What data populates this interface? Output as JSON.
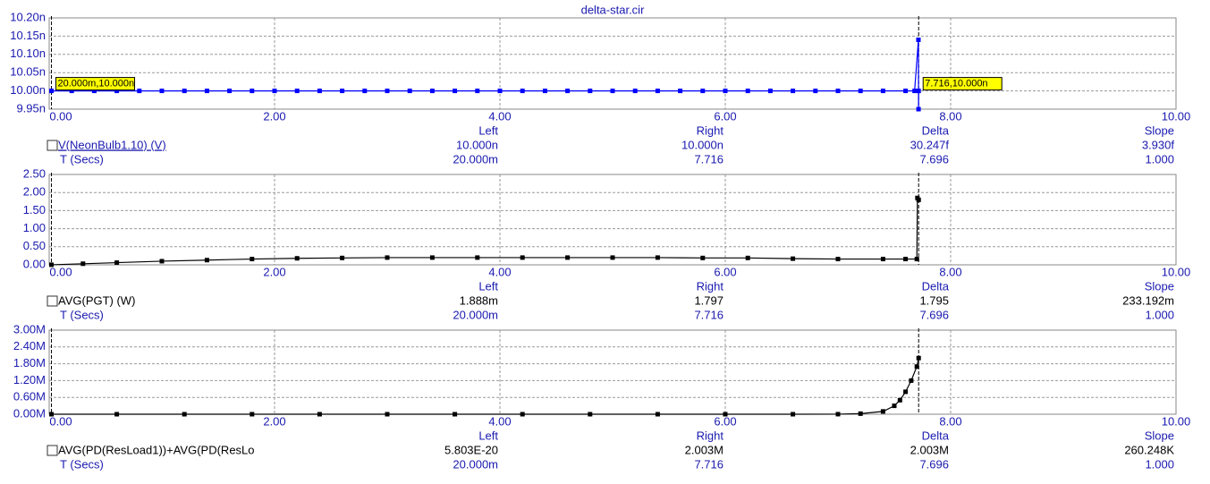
{
  "title": "delta-star.cir",
  "chart_data": [
    {
      "type": "line",
      "series": [
        {
          "name": "V(NeonBulb1.10) (V)",
          "color": "#0000ff",
          "x": [
            0.02,
            0.2,
            0.4,
            0.6,
            0.8,
            1.0,
            1.2,
            1.4,
            1.6,
            1.8,
            2.0,
            2.2,
            2.4,
            2.6,
            2.8,
            3.0,
            3.2,
            3.4,
            3.6,
            3.8,
            4.0,
            4.2,
            4.4,
            4.6,
            4.8,
            5.0,
            5.2,
            5.4,
            5.6,
            5.8,
            6.0,
            6.2,
            6.4,
            6.6,
            6.8,
            7.0,
            7.2,
            7.4,
            7.6,
            7.68,
            7.714,
            7.715,
            7.716
          ],
          "values": [
            1e-08,
            1e-08,
            1e-08,
            1e-08,
            1e-08,
            1e-08,
            1e-08,
            1e-08,
            1e-08,
            1e-08,
            1e-08,
            1e-08,
            1e-08,
            1e-08,
            1e-08,
            1e-08,
            1e-08,
            1e-08,
            1e-08,
            1e-08,
            1e-08,
            1e-08,
            1e-08,
            1e-08,
            1e-08,
            1e-08,
            1e-08,
            1e-08,
            1e-08,
            1e-08,
            1e-08,
            1e-08,
            1e-08,
            1e-08,
            1e-08,
            1e-08,
            1e-08,
            1e-08,
            1e-08,
            1e-08,
            1.014e-08,
            9.95e-09,
            1e-08
          ]
        }
      ],
      "xlim": [
        0,
        10
      ],
      "xticks": [
        {
          "value": 0,
          "label": "0.00"
        },
        {
          "value": 2,
          "label": "2.00"
        },
        {
          "value": 4,
          "label": "4.00"
        },
        {
          "value": 6,
          "label": "6.00"
        },
        {
          "value": 8,
          "label": "8.00"
        },
        {
          "value": 10,
          "label": "10.00"
        }
      ],
      "ylim": [
        9.95e-09,
        1.02e-08
      ],
      "yticks": [
        {
          "value": 9.95e-09,
          "label": "9.95n"
        },
        {
          "value": 1e-08,
          "label": "10.00n"
        },
        {
          "value": 1.005e-08,
          "label": "10.05n"
        },
        {
          "value": 1.01e-08,
          "label": "10.10n"
        },
        {
          "value": 1.015e-08,
          "label": "10.15n"
        },
        {
          "value": 1.02e-08,
          "label": "10.20n"
        }
      ],
      "grid": true,
      "cursors": [
        0.02,
        7.716
      ],
      "cursor_labels": [
        "20.000m,10.000n",
        "7.716,10.000n"
      ],
      "readout": {
        "headers": [
          "Left",
          "Right",
          "Delta",
          "Slope"
        ],
        "x_label": "T (Secs)",
        "trace_values": [
          "10.000n",
          "10.000n",
          "30.247f",
          "3.930f"
        ],
        "x_values": [
          "20.000m",
          "7.716",
          "7.696",
          "1.000"
        ]
      }
    },
    {
      "type": "line",
      "series": [
        {
          "name": "AVG(PGT) (W)",
          "color": "#000000",
          "x": [
            0.02,
            0.3,
            0.6,
            1.0,
            1.4,
            1.8,
            2.2,
            2.6,
            3.0,
            3.4,
            3.8,
            4.2,
            4.6,
            5.0,
            5.4,
            5.8,
            6.2,
            6.6,
            7.0,
            7.4,
            7.6,
            7.7,
            7.705,
            7.716
          ],
          "values": [
            0.001888,
            0.03,
            0.06,
            0.1,
            0.13,
            0.16,
            0.18,
            0.19,
            0.2,
            0.2,
            0.2,
            0.2,
            0.2,
            0.2,
            0.2,
            0.19,
            0.19,
            0.17,
            0.16,
            0.16,
            0.16,
            0.16,
            1.85,
            1.797
          ]
        }
      ],
      "xlim": [
        0,
        10
      ],
      "xticks": [
        {
          "value": 0,
          "label": "0.00"
        },
        {
          "value": 2,
          "label": "2.00"
        },
        {
          "value": 4,
          "label": "4.00"
        },
        {
          "value": 6,
          "label": "6.00"
        },
        {
          "value": 8,
          "label": "8.00"
        },
        {
          "value": 10,
          "label": "10.00"
        }
      ],
      "ylim": [
        0,
        2.5
      ],
      "yticks": [
        {
          "value": 0,
          "label": "0.00"
        },
        {
          "value": 0.5,
          "label": "0.50"
        },
        {
          "value": 1,
          "label": "1.00"
        },
        {
          "value": 1.5,
          "label": "1.50"
        },
        {
          "value": 2,
          "label": "2.00"
        },
        {
          "value": 2.5,
          "label": "2.50"
        }
      ],
      "grid": true,
      "cursors": [
        0.02,
        7.716
      ],
      "readout": {
        "headers": [
          "Left",
          "Right",
          "Delta",
          "Slope"
        ],
        "x_label": "T (Secs)",
        "trace_values": [
          "1.888m",
          "1.797",
          "1.795",
          "233.192m"
        ],
        "x_values": [
          "20.000m",
          "7.716",
          "7.696",
          "1.000"
        ]
      }
    },
    {
      "type": "line",
      "series": [
        {
          "name": "AVG(PD(ResLoad1))+AVG(PD(ResLo",
          "color": "#000000",
          "x": [
            0.02,
            0.6,
            1.2,
            1.8,
            2.4,
            3.0,
            3.6,
            4.2,
            4.8,
            5.4,
            6.0,
            6.6,
            7.0,
            7.2,
            7.4,
            7.5,
            7.55,
            7.6,
            7.65,
            7.7,
            7.716
          ],
          "values": [
            5.803e-20,
            0,
            0,
            0,
            0,
            0,
            0,
            0,
            0,
            0,
            0,
            0,
            2000,
            20000,
            100000,
            300000,
            500000,
            800000,
            1200000,
            1700000,
            2003000
          ]
        }
      ],
      "xlim": [
        0,
        10
      ],
      "xticks": [
        {
          "value": 0,
          "label": "0.00"
        },
        {
          "value": 2,
          "label": "2.00"
        },
        {
          "value": 4,
          "label": "4.00"
        },
        {
          "value": 6,
          "label": "6.00"
        },
        {
          "value": 8,
          "label": "8.00"
        },
        {
          "value": 10,
          "label": "10.00"
        }
      ],
      "ylim": [
        0,
        3000000
      ],
      "yticks": [
        {
          "value": 0,
          "label": "0.00M"
        },
        {
          "value": 600000,
          "label": "0.60M"
        },
        {
          "value": 1200000,
          "label": "1.20M"
        },
        {
          "value": 1800000,
          "label": "1.80M"
        },
        {
          "value": 2400000,
          "label": "2.40M"
        },
        {
          "value": 3000000,
          "label": "3.00M"
        }
      ],
      "grid": true,
      "cursors": [
        0.02,
        7.716
      ],
      "readout": {
        "headers": [
          "Left",
          "Right",
          "Delta",
          "Slope"
        ],
        "x_label": "T (Secs)",
        "trace_values": [
          "5.803E-20",
          "2.003M",
          "2.003M",
          "260.248K"
        ],
        "x_values": [
          "20.000m",
          "7.716",
          "7.696",
          "1.000"
        ]
      }
    }
  ]
}
